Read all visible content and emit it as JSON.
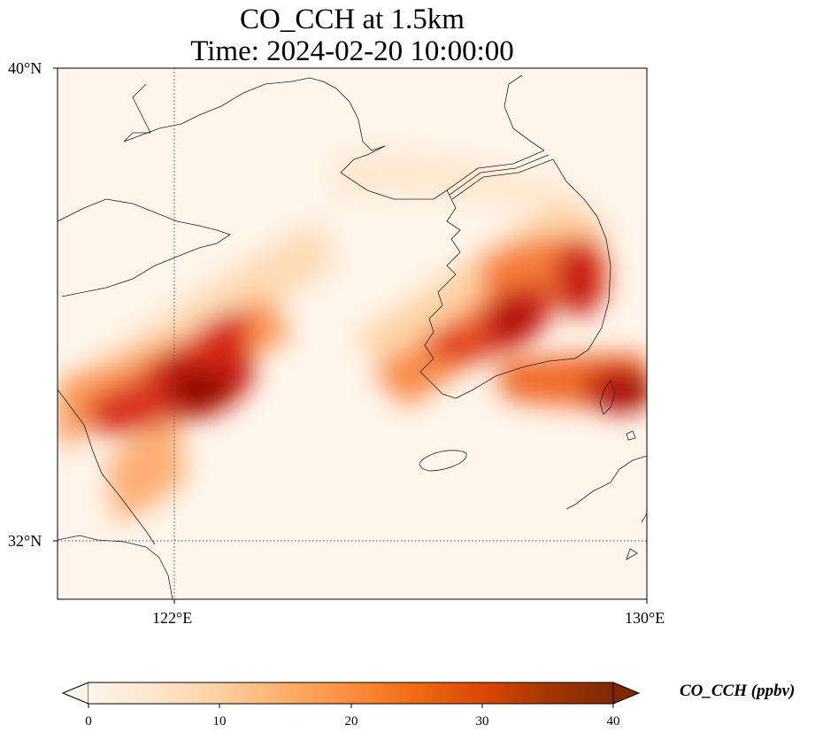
{
  "title_line1": "CO_CCH at 1.5km",
  "title_line2": "Time: 2024-02-20 10:00:00",
  "lat_ticks": [
    {
      "label": "40°N"
    },
    {
      "label": "32°N"
    }
  ],
  "lon_ticks": [
    {
      "label": "122°E"
    },
    {
      "label": "130°E"
    }
  ],
  "colorbar": {
    "label": "CO_CCH (ppbv)",
    "min": 0,
    "max": 40,
    "ticks": [
      "0",
      "10",
      "20",
      "30",
      "40"
    ],
    "colormap": [
      "#fff5eb",
      "#fee6ce",
      "#fdd0a2",
      "#fdae6b",
      "#fd8d3c",
      "#f16913",
      "#d94801",
      "#a63603",
      "#7f2704"
    ],
    "extend": "both"
  }
}
